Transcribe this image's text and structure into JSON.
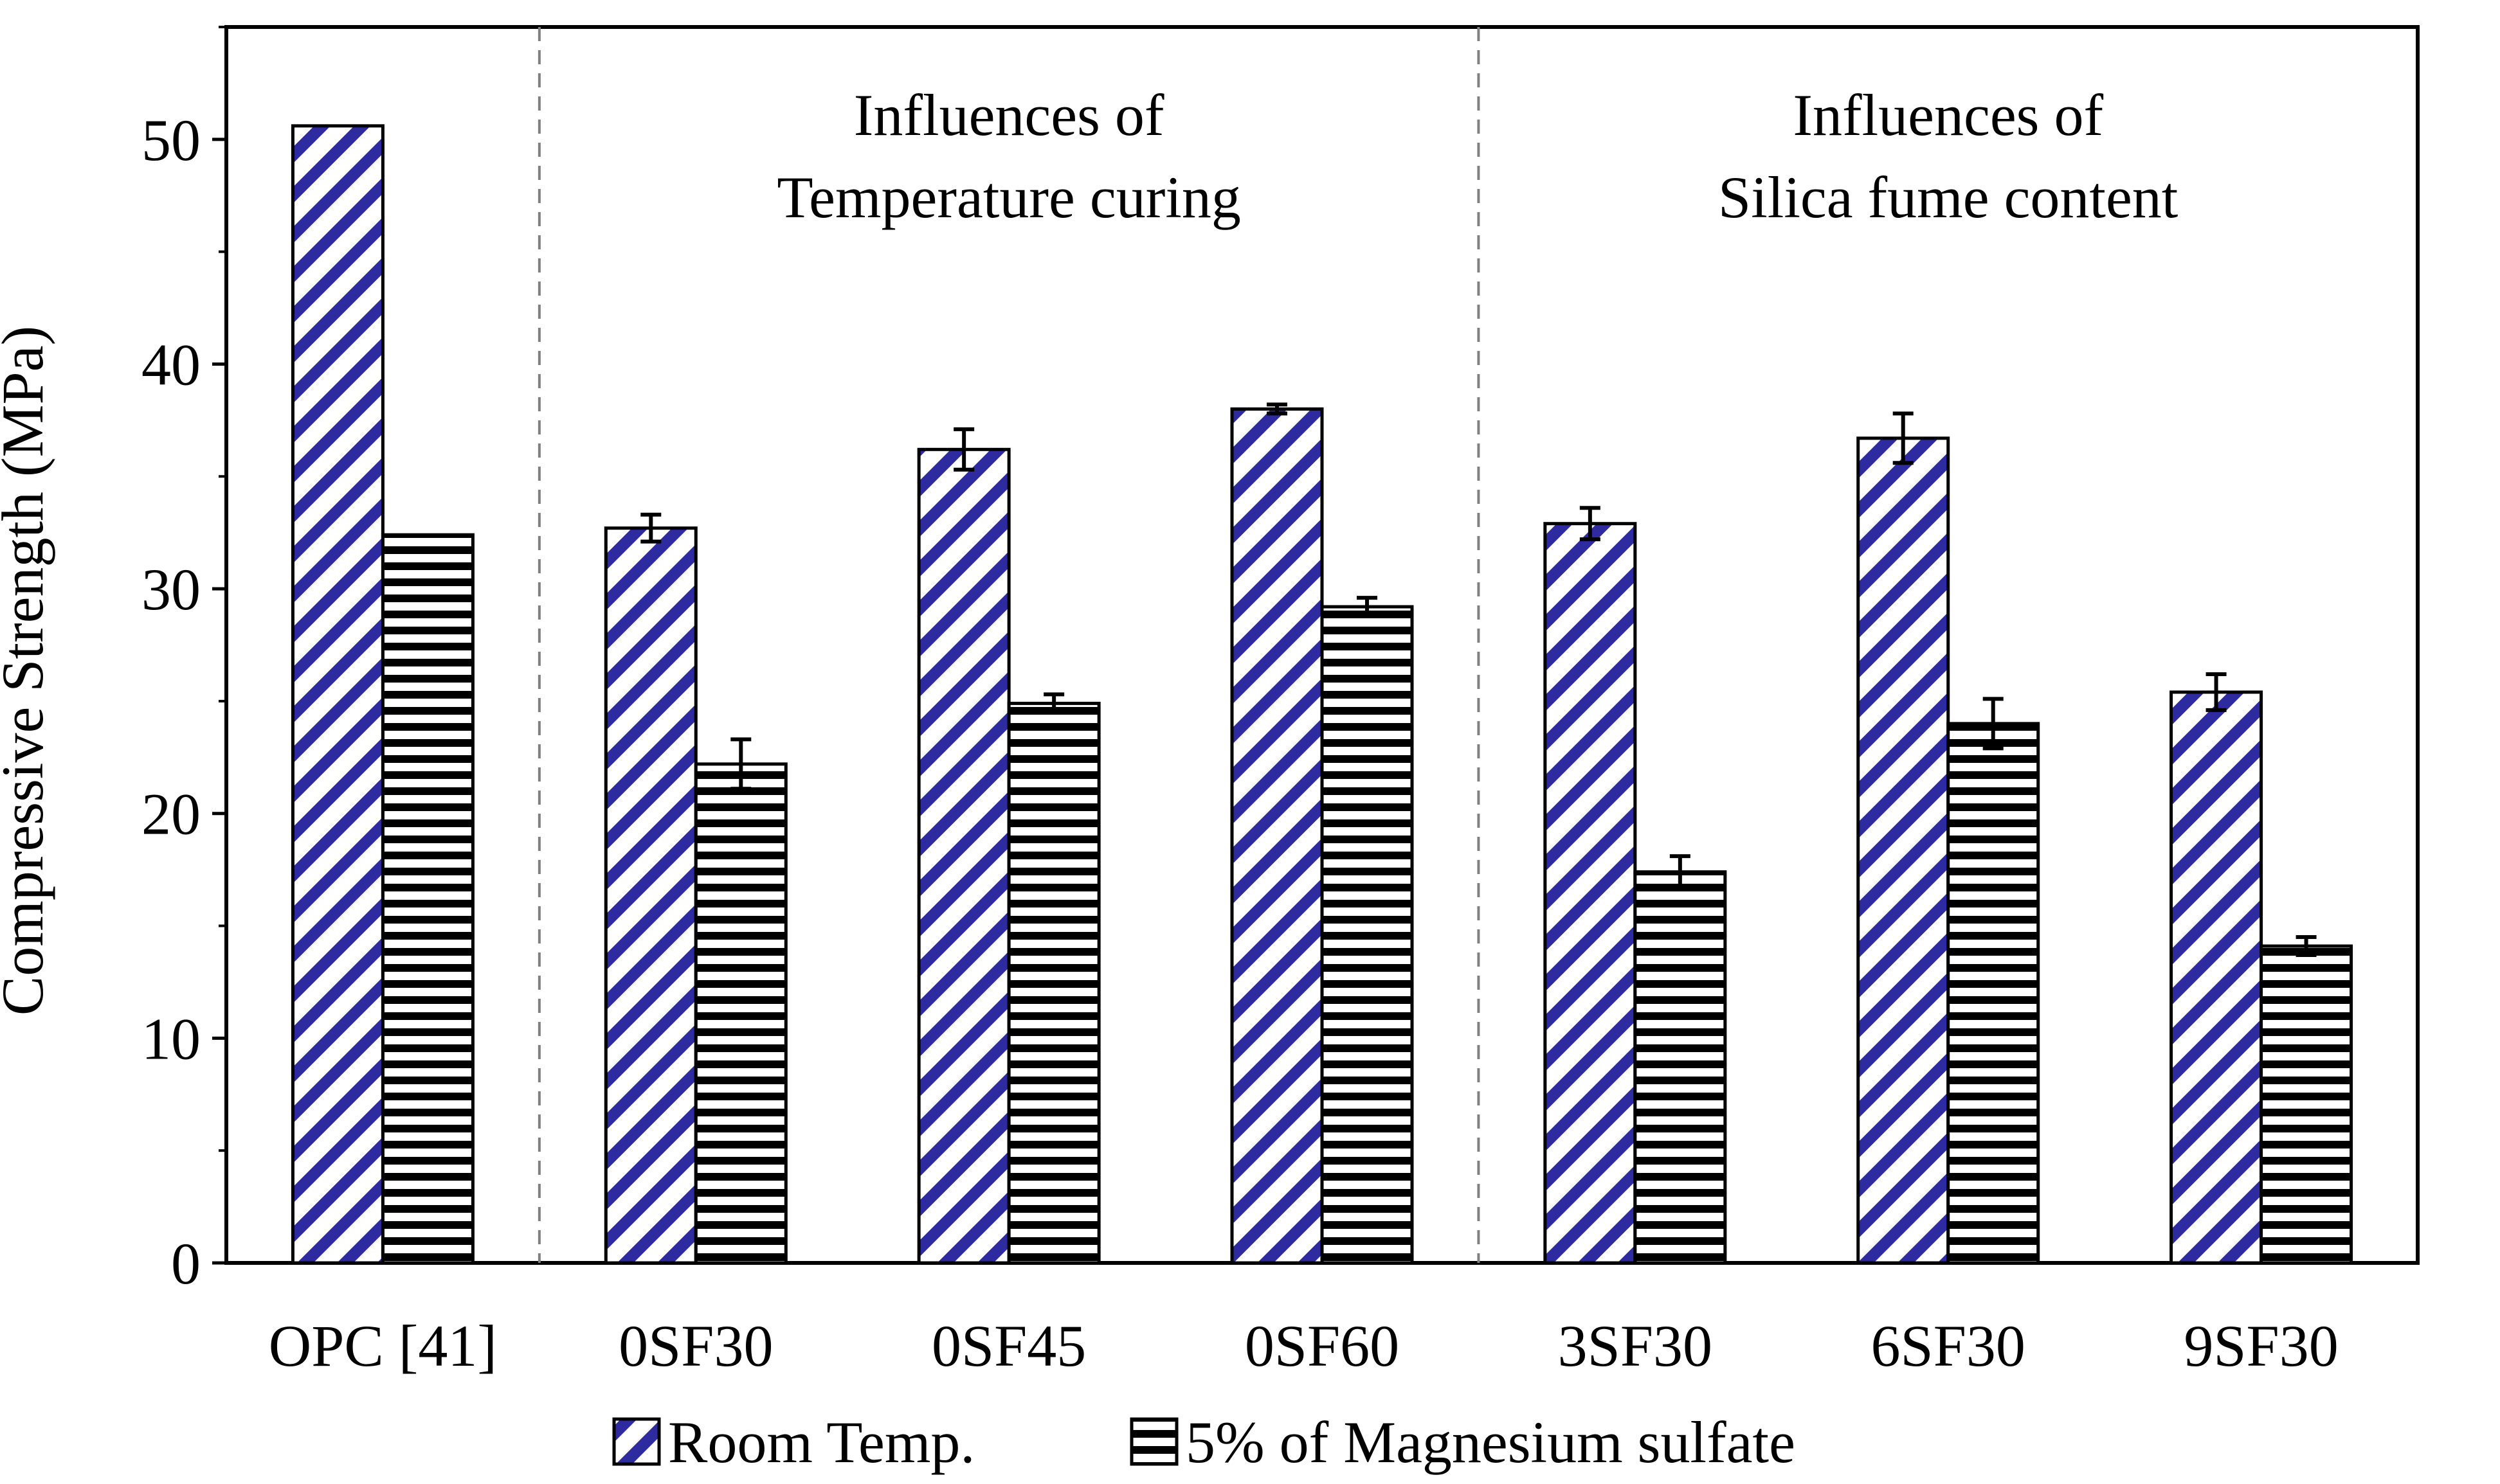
{
  "chart_data": {
    "type": "bar",
    "title": "",
    "xlabel": "",
    "ylabel": "Compressive Strength (MPa)",
    "ylim": [
      0,
      55
    ],
    "yticks": [
      0,
      10,
      20,
      30,
      40,
      50
    ],
    "grid": false,
    "legend_position": "bottom",
    "categories": [
      "OPC [41]",
      "0SF30",
      "0SF45",
      "0SF60",
      "3SF30",
      "6SF30",
      "9SF30"
    ],
    "series": [
      {
        "name": "Room Temp.",
        "pattern": "diagonal-hatch",
        "color": "#2e2aa0",
        "values": [
          50.6,
          32.7,
          36.2,
          38.0,
          32.9,
          36.7,
          25.4
        ],
        "errors": [
          null,
          0.6,
          0.9,
          0.2,
          0.7,
          1.1,
          0.8
        ]
      },
      {
        "name": "5% of Magnesium sulfate",
        "pattern": "horizontal-stripes",
        "color": "#000000",
        "values": [
          32.4,
          22.2,
          24.9,
          29.2,
          17.4,
          24.0,
          14.1
        ],
        "errors": [
          null,
          1.1,
          0.4,
          0.4,
          0.7,
          1.1,
          0.4
        ]
      }
    ],
    "group_labels": [
      {
        "line1": "Influences of",
        "line2": "Temperature curing"
      },
      {
        "line1": "Influences of",
        "line2": "Silica fume content"
      }
    ]
  }
}
